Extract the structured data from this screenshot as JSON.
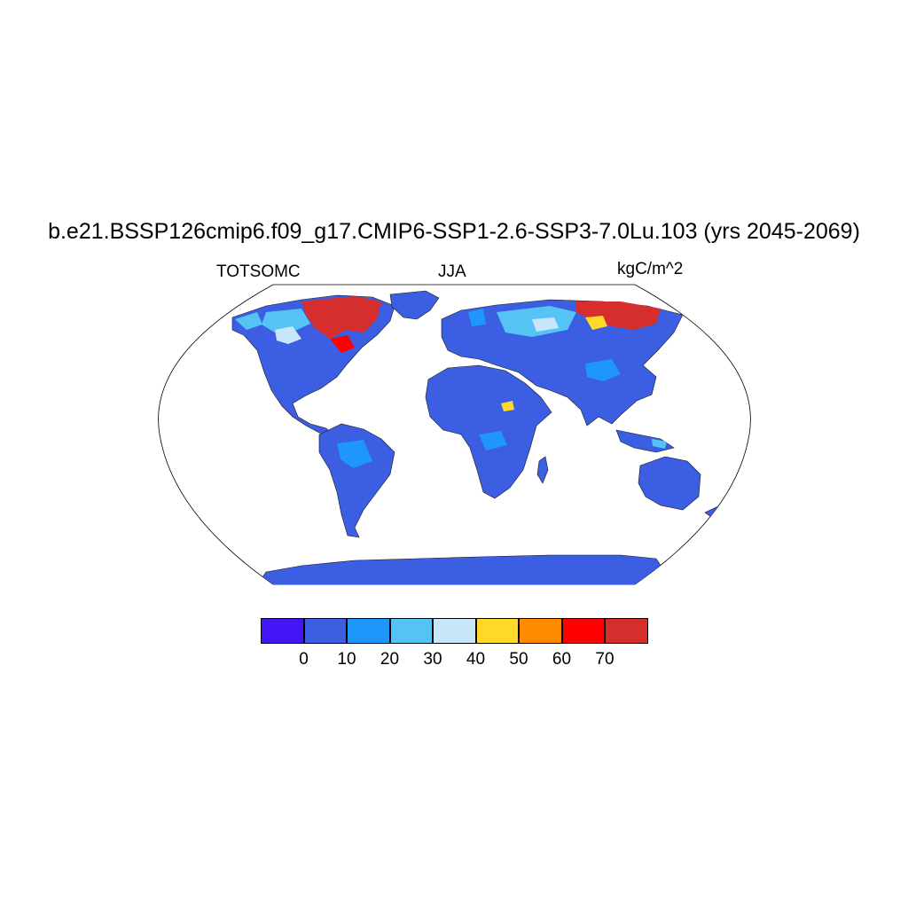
{
  "title": "b.e21.BSSP126cmip6.f09_g17.CMIP6-SSP1-2.6-SSP3-7.0Lu.103 (yrs 2045-2069)",
  "variable": "TOTSOMC",
  "season": "JJA",
  "units": "kgC/m^2",
  "colorbar": {
    "colors": [
      "#4216f5",
      "#3b5ee2",
      "#1e96fa",
      "#56c3f5",
      "#c8e6fa",
      "#ffd92a",
      "#ff8b00",
      "#ff0000",
      "#d62d2d"
    ],
    "labels": [
      "0",
      "10",
      "20",
      "30",
      "40",
      "50",
      "60",
      "70"
    ]
  }
}
